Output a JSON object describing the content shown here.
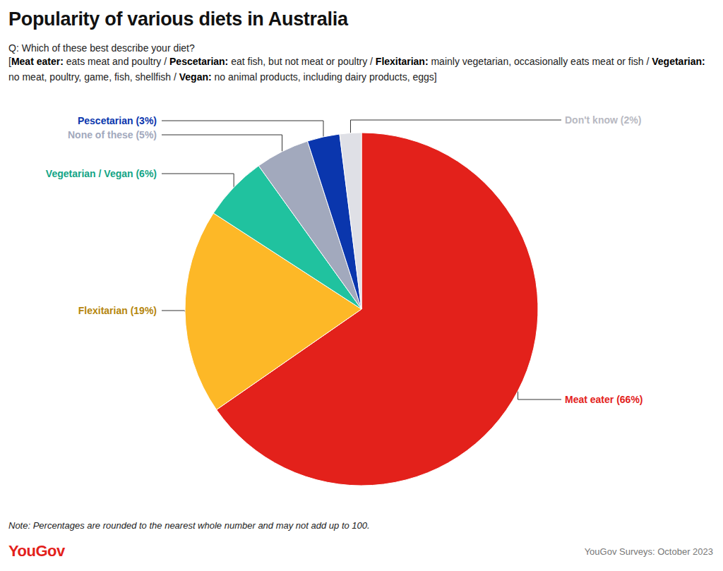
{
  "chart_data": {
    "type": "pie",
    "title": "Popularity of various diets in Australia",
    "subtitle": "Q: Which of these best describe your diet?",
    "definition_parts": [
      "[",
      "Meat eater:",
      " eats meat and poultry / ",
      "Pescetarian:",
      " eat fish, but not meat or poultry / ",
      "Flexitarian:",
      " mainly vegetarian, occasionally eats meat or fish / ",
      "Vegetarian:",
      " no meat, poultry, game, fish, shellfish / ",
      "Vegan:",
      " no animal products, including dairy products, eggs]"
    ],
    "categories": [
      "Meat eater",
      "Flexitarian",
      "Vegetarian / Vegan",
      "None of these",
      "Pescetarian",
      "Don't know"
    ],
    "values": [
      66,
      19,
      6,
      5,
      3,
      2
    ],
    "value_labels": [
      "Meat eater (66%)",
      "Flexitarian (19%)",
      "Vegetarian / Vegan (6%)",
      "None of these (5%)",
      "Pescetarian (3%)",
      "Don't know (2%)"
    ],
    "colors": [
      "#e3211b",
      "#fdb827",
      "#20c29f",
      "#a2a9bd",
      "#0a36ad",
      "#dfe0e6"
    ],
    "data_labels": true,
    "note": "Note: Percentages are rounded to the nearest whole number and may not add up to 100.",
    "brand": "YouGov",
    "source": "YouGov Surveys: October 2023"
  }
}
